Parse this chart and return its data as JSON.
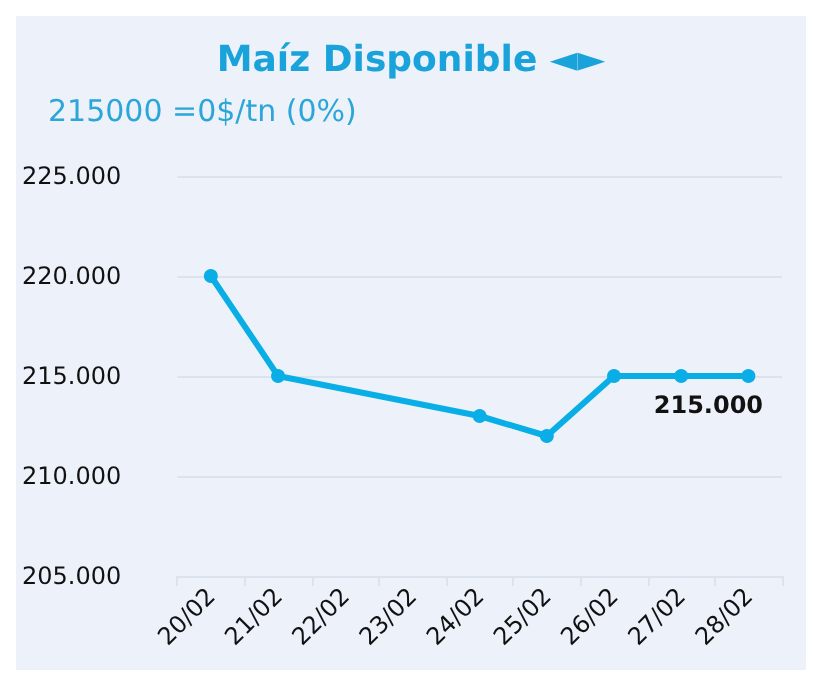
{
  "chart_data": {
    "type": "line",
    "title": "Maíz Disponible ◄►",
    "subtitle": "215000 =0$/tn (0%)",
    "categories": [
      "20/02",
      "21/02",
      "22/02",
      "23/02",
      "24/02",
      "25/02",
      "26/02",
      "27/02",
      "28/02"
    ],
    "series": [
      {
        "color": "#0aaee6",
        "values": [
          220000,
          215000,
          null,
          null,
          213000,
          212000,
          215000,
          215000,
          215000
        ],
        "value_labels": [
          null,
          null,
          null,
          null,
          null,
          null,
          null,
          null,
          "215.000"
        ]
      }
    ],
    "ylim": [
      205000,
      225000
    ],
    "yticks": [
      {
        "value": 205000,
        "label": "205.000"
      },
      {
        "value": 210000,
        "label": "210.000"
      },
      {
        "value": 215000,
        "label": "215.000"
      },
      {
        "value": 220000,
        "label": "220.000"
      },
      {
        "value": 225000,
        "label": "225.000"
      }
    ],
    "grid": "y",
    "marker": "circle",
    "line_style": "solid"
  }
}
